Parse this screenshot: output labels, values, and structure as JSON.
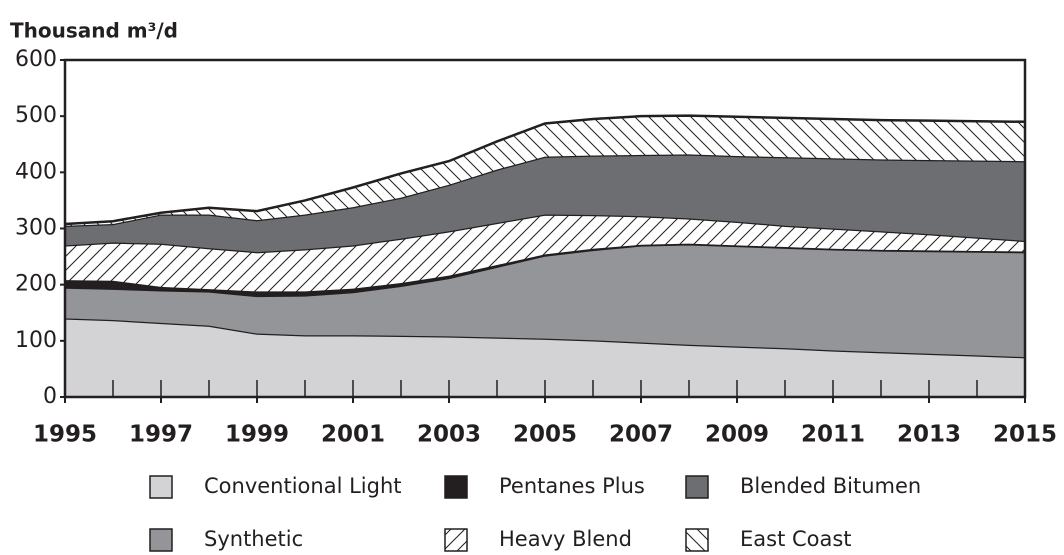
{
  "chart_data": {
    "type": "stacked_area",
    "y_label": "Thousand m³/d",
    "x": [
      1995,
      1996,
      1997,
      1998,
      1999,
      2000,
      2001,
      2002,
      2003,
      2004,
      2005,
      2006,
      2007,
      2008,
      2009,
      2010,
      2011,
      2012,
      2013,
      2014,
      2015
    ],
    "xlim": [
      1995,
      2015
    ],
    "xticks": [
      1995,
      1997,
      1999,
      2001,
      2003,
      2005,
      2007,
      2009,
      2011,
      2013,
      2015
    ],
    "ylim": [
      0,
      600
    ],
    "yticks": [
      0,
      100,
      200,
      300,
      400,
      500,
      600
    ],
    "series": [
      {
        "name": "Conventional Light",
        "color": "#d3d3d5",
        "values": [
          140,
          137,
          132,
          127,
          113,
          110,
          110,
          109,
          108,
          106,
          104,
          101,
          97,
          93,
          90,
          87,
          83,
          80,
          77,
          74,
          71
        ]
      },
      {
        "name": "Synthetic",
        "color": "#949598",
        "values": [
          55,
          56,
          58,
          61,
          67,
          71,
          77,
          89,
          104,
          126,
          148,
          161,
          173,
          179,
          179,
          179,
          180,
          181,
          183,
          185,
          187
        ]
      },
      {
        "name": "Pentanes Plus",
        "color": "#231f20",
        "values": [
          13,
          14,
          6,
          4,
          8,
          7,
          6,
          5,
          4,
          3,
          2,
          2,
          1,
          1,
          1,
          1,
          1,
          1,
          1,
          1,
          1
        ]
      },
      {
        "name": "Heavy Blend",
        "color": "#ffffff",
        "hatch": "/",
        "values": [
          62,
          68,
          77,
          73,
          70,
          75,
          77,
          79,
          79,
          75,
          71,
          60,
          51,
          45,
          42,
          38,
          36,
          33,
          29,
          24,
          19
        ]
      },
      {
        "name": "Blended Bitumen",
        "color": "#6d6e71",
        "values": [
          35,
          33,
          52,
          60,
          57,
          62,
          68,
          73,
          83,
          95,
          103,
          106,
          109,
          114,
          117,
          122,
          125,
          128,
          132,
          137,
          142
        ]
      },
      {
        "name": "East Coast",
        "color": "#ffffff",
        "hatch": "\\",
        "values": [
          3,
          5,
          3,
          12,
          16,
          25,
          35,
          43,
          42,
          50,
          59,
          65,
          69,
          69,
          70,
          70,
          70,
          70,
          70,
          70,
          70
        ]
      }
    ]
  }
}
